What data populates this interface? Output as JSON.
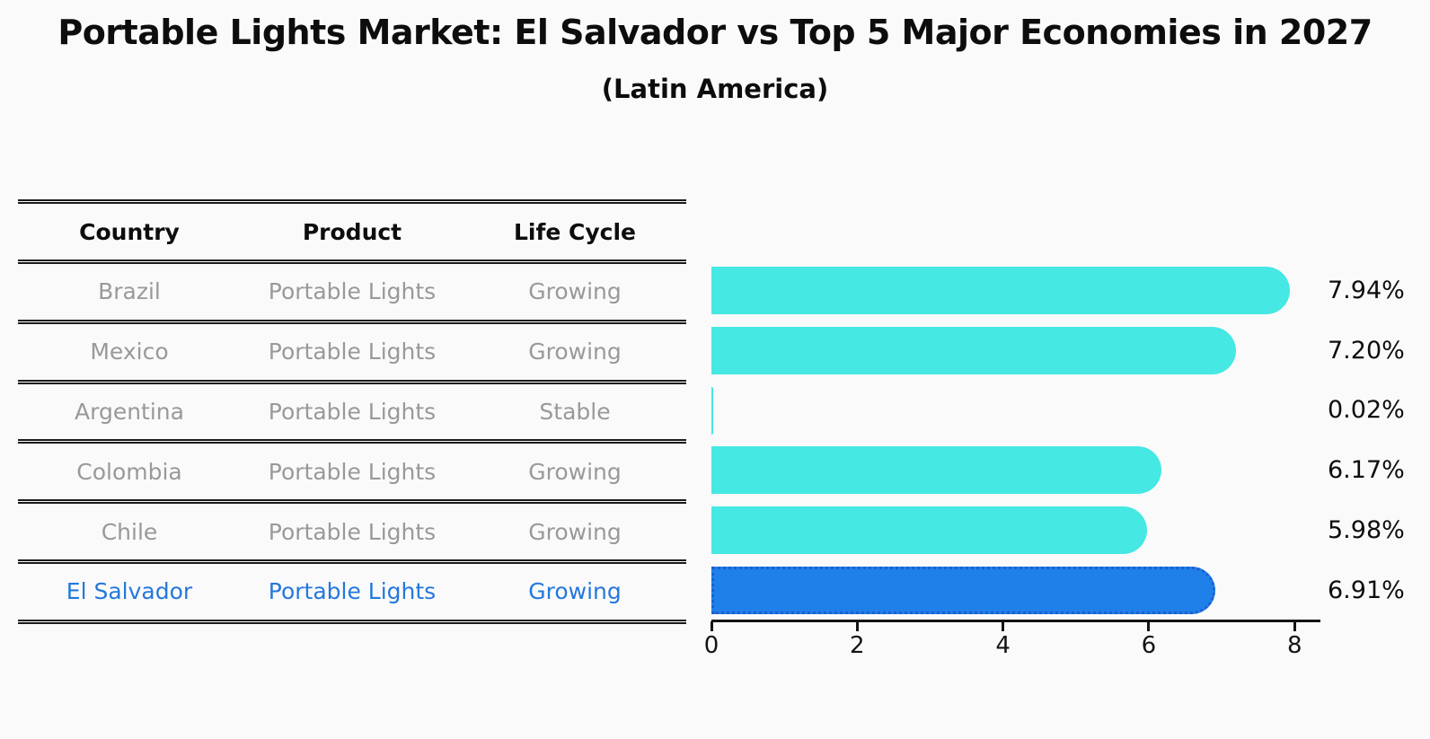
{
  "title": "Portable Lights Market: El Salvador vs Top 5 Major Economies in 2027",
  "subtitle": "(Latin America)",
  "table": {
    "headers": [
      "Country",
      "Product",
      "Life Cycle"
    ],
    "rows": [
      {
        "country": "Brazil",
        "product": "Portable Lights",
        "life_cycle": "Growing",
        "highlight": false
      },
      {
        "country": "Mexico",
        "product": "Portable Lights",
        "life_cycle": "Growing",
        "highlight": false
      },
      {
        "country": "Argentina",
        "product": "Portable Lights",
        "life_cycle": "Stable",
        "highlight": false
      },
      {
        "country": "Colombia",
        "product": "Portable Lights",
        "life_cycle": "Growing",
        "highlight": false
      },
      {
        "country": "Chile",
        "product": "Portable Lights",
        "life_cycle": "Growing",
        "highlight": false
      },
      {
        "country": "El Salvador",
        "product": "Portable Lights",
        "life_cycle": "Growing",
        "highlight": true
      }
    ]
  },
  "chart_data": {
    "type": "bar",
    "orientation": "horizontal",
    "categories": [
      "Brazil",
      "Mexico",
      "Argentina",
      "Colombia",
      "Chile",
      "El Salvador"
    ],
    "values": [
      7.94,
      7.2,
      0.02,
      6.17,
      5.98,
      6.91
    ],
    "value_labels": [
      "7.94%",
      "7.20%",
      "0.02%",
      "6.17%",
      "5.98%",
      "6.91%"
    ],
    "highlight_index": 5,
    "xlim": [
      0,
      8.33
    ],
    "xticks": [
      0,
      2,
      4,
      6,
      8
    ],
    "xtick_labels": [
      "0",
      "2",
      "4",
      "6",
      "8"
    ],
    "grid": false,
    "legend": false,
    "title": "Portable Lights Market: El Salvador vs Top 5 Major Economies in 2027",
    "subtitle": "(Latin America)",
    "xlabel": "",
    "ylabel": ""
  },
  "colors": {
    "bar": "#45e8e3",
    "highlight_bar": "#1e80e8",
    "highlight_bar_border": "#1d5fd0",
    "highlight_text": "#2478db",
    "table_text": "#999999",
    "heading_text": "#0d0d0d",
    "axis": "#141414",
    "background": "#fbfafb"
  }
}
